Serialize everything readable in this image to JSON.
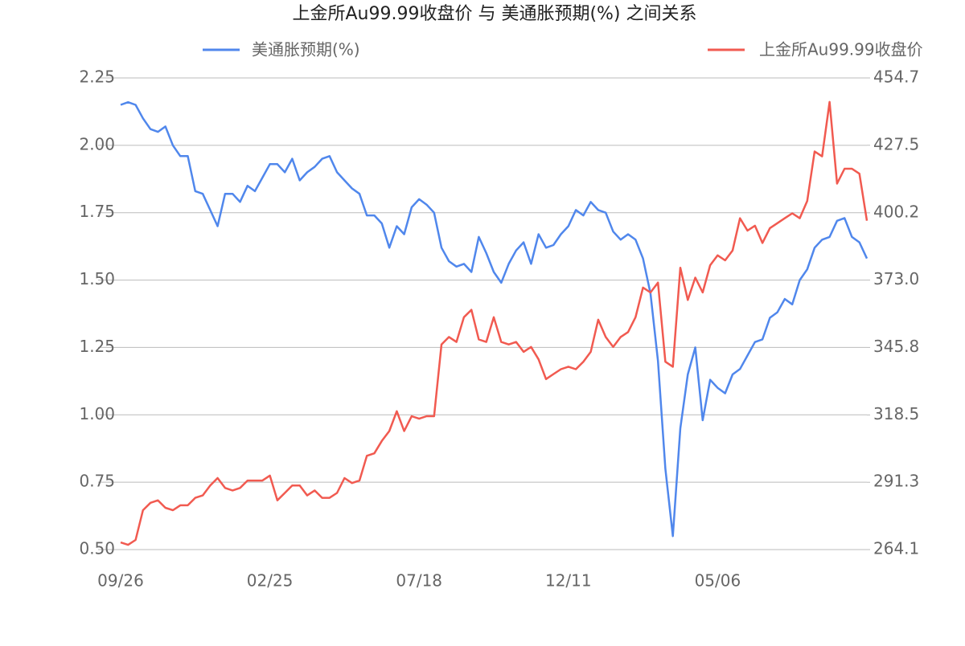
{
  "chart_data": {
    "type": "line",
    "title": "上金所Au99.99收盘价 与 美通胀预期(%) 之间关系",
    "categories": [
      "09/26",
      null,
      null,
      null,
      null,
      null,
      null,
      null,
      null,
      null,
      null,
      null,
      null,
      null,
      null,
      null,
      null,
      null,
      null,
      null,
      "02/25",
      null,
      null,
      null,
      null,
      null,
      null,
      null,
      null,
      null,
      null,
      null,
      null,
      null,
      null,
      null,
      null,
      null,
      null,
      null,
      "07/18",
      null,
      null,
      null,
      null,
      null,
      null,
      null,
      null,
      null,
      null,
      null,
      null,
      null,
      null,
      null,
      null,
      null,
      null,
      null,
      "12/11",
      null,
      null,
      null,
      null,
      null,
      null,
      null,
      null,
      null,
      null,
      null,
      null,
      null,
      null,
      null,
      null,
      null,
      null,
      null,
      "05/06",
      null,
      null,
      null,
      null,
      null,
      null,
      null,
      null,
      null,
      null,
      null,
      null,
      null,
      null,
      null,
      null,
      null,
      null,
      null,
      null
    ],
    "series": [
      {
        "name": "美通胀预期(%)",
        "color": "#5087ec",
        "axis": "y",
        "values": [
          2.15,
          2.16,
          2.15,
          2.1,
          2.06,
          2.05,
          2.07,
          2.0,
          1.96,
          1.96,
          1.83,
          1.82,
          1.76,
          1.7,
          1.82,
          1.82,
          1.79,
          1.85,
          1.83,
          1.88,
          1.93,
          1.93,
          1.9,
          1.95,
          1.87,
          1.9,
          1.92,
          1.95,
          1.96,
          1.9,
          1.87,
          1.84,
          1.82,
          1.74,
          1.74,
          1.71,
          1.62,
          1.7,
          1.67,
          1.77,
          1.8,
          1.78,
          1.75,
          1.62,
          1.57,
          1.55,
          1.56,
          1.53,
          1.66,
          1.6,
          1.53,
          1.49,
          1.56,
          1.61,
          1.64,
          1.56,
          1.67,
          1.62,
          1.63,
          1.67,
          1.7,
          1.76,
          1.74,
          1.79,
          1.76,
          1.75,
          1.68,
          1.65,
          1.67,
          1.65,
          1.58,
          1.45,
          1.2,
          0.8,
          0.55,
          0.95,
          1.15,
          1.25,
          0.98,
          1.13,
          1.1,
          1.08,
          1.15,
          1.17,
          1.22,
          1.27,
          1.28,
          1.36,
          1.38,
          1.43,
          1.41,
          1.5,
          1.54,
          1.62,
          1.65,
          1.66,
          1.72,
          1.73,
          1.66,
          1.64,
          1.58
        ]
      },
      {
        "name": "上金所Au99.99收盘价",
        "color": "#f15a50",
        "axis": "y2",
        "values": [
          267,
          266,
          268,
          280,
          283,
          284,
          281,
          280,
          282,
          282,
          285,
          286,
          290,
          293,
          289,
          288,
          289,
          292,
          292,
          292,
          294,
          284,
          287,
          290,
          290,
          286,
          288,
          285,
          285,
          287,
          293,
          291,
          292,
          302,
          303,
          308,
          312,
          320,
          312,
          318,
          317,
          318,
          318,
          347,
          350,
          348,
          358,
          361,
          349,
          348,
          358,
          348,
          347,
          348,
          344,
          346,
          341,
          333,
          335,
          337,
          338,
          337,
          340,
          344,
          357,
          350,
          346,
          350,
          352,
          358,
          370,
          368,
          372,
          340,
          338,
          378,
          365,
          374,
          368,
          379,
          383,
          381,
          385,
          398,
          393,
          395,
          388,
          394,
          396,
          398,
          400,
          398,
          405,
          425,
          423,
          445,
          412,
          418,
          418,
          416,
          397
        ]
      }
    ],
    "ylim": [
      0.5,
      2.25
    ],
    "yticks": [
      {
        "value": 0.5,
        "label": "0.50"
      },
      0.75,
      {
        "value": 1,
        "label": "1.00"
      },
      1.25,
      {
        "value": 1.5,
        "label": "1.50"
      },
      1.75,
      {
        "value": 2,
        "label": "2.00"
      },
      2.25
    ],
    "y2lim": [
      264.1,
      454.7
    ],
    "y2ticks": [
      264.1,
      291.3,
      318.5,
      345.8,
      {
        "value": 373,
        "label": "373.0"
      },
      400.2,
      427.5,
      454.7
    ],
    "grid": true
  }
}
